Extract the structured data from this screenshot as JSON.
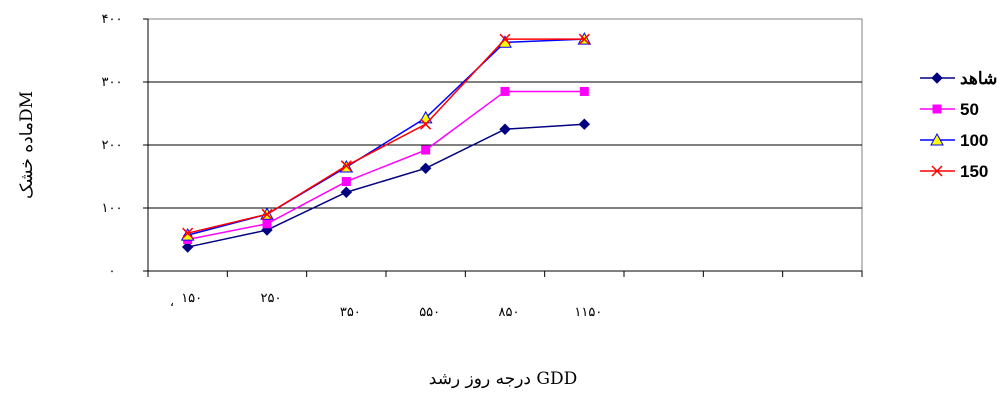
{
  "chart_data": {
    "type": "line",
    "categories": [
      "۱۵۰",
      "۲۵۰",
      "۳۵۰",
      "۵۵۰",
      "۸۵۰",
      "۱۱۵۰"
    ],
    "stray_x_label": "،",
    "y_ticks": [
      "۰",
      "۱۰۰",
      "۲۰۰",
      "۳۰۰",
      "۴۰۰"
    ],
    "ylim": [
      0,
      400
    ],
    "ylabel": "ماده خشکDM",
    "xlabel": "درجه روز رشد GDD",
    "grid": "horizontal",
    "legend_position": "right",
    "series": [
      {
        "name": "شاهد",
        "color": "#000080",
        "marker": "diamond",
        "values": [
          38,
          65,
          125,
          163,
          225,
          233
        ]
      },
      {
        "name": "50",
        "color": "#FF00FF",
        "marker": "square",
        "values": [
          50,
          75,
          142,
          192,
          285,
          285
        ]
      },
      {
        "name": "100",
        "color": "#0000FF",
        "marker": "triangle",
        "values": [
          57,
          90,
          165,
          243,
          363,
          368
        ]
      },
      {
        "name": "150",
        "color": "#FF0000",
        "marker": "x",
        "values": [
          60,
          90,
          167,
          233,
          368,
          368
        ]
      }
    ]
  }
}
